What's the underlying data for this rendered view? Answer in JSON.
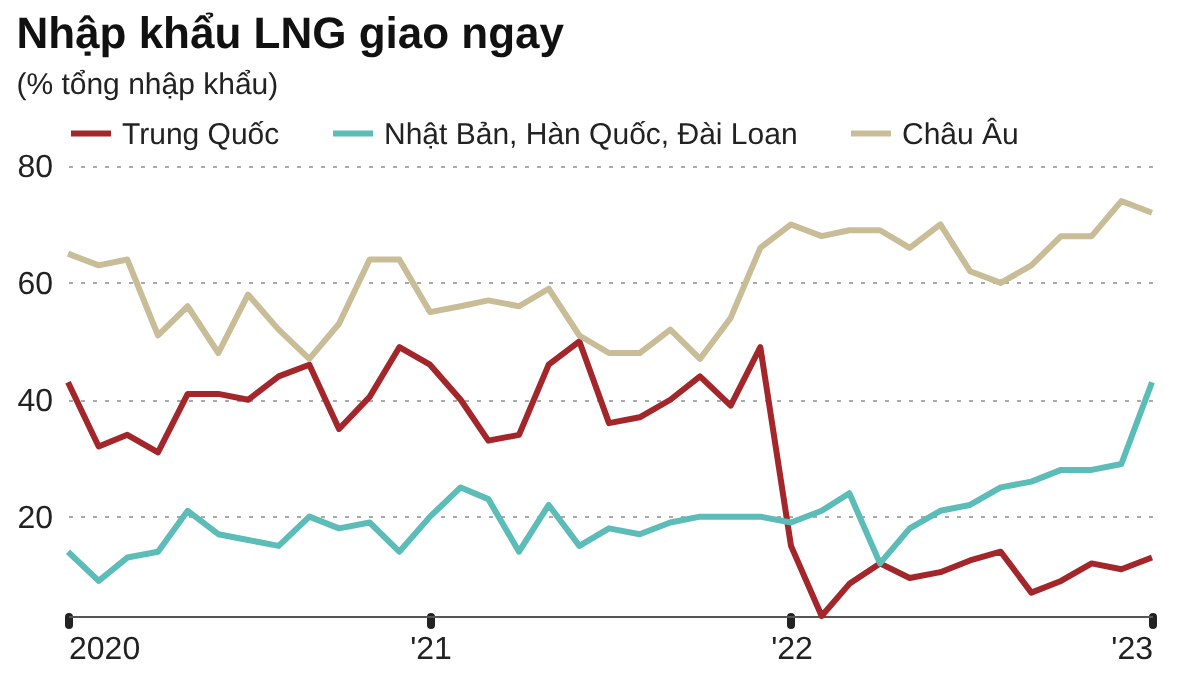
{
  "chart_data": {
    "type": "line",
    "title": "Nhập khẩu LNG giao ngay",
    "subtitle": "(% tổng nhập khẩu)",
    "x": [
      "2020-01",
      "2020-02",
      "2020-03",
      "2020-04",
      "2020-05",
      "2020-06",
      "2020-07",
      "2020-08",
      "2020-09",
      "2020-10",
      "2020-11",
      "2020-12",
      "2021-01",
      "2021-02",
      "2021-03",
      "2021-04",
      "2021-05",
      "2021-06",
      "2021-07",
      "2021-08",
      "2021-09",
      "2021-10",
      "2021-11",
      "2021-12",
      "2022-01",
      "2022-02",
      "2022-03",
      "2022-04",
      "2022-05",
      "2022-06",
      "2022-07",
      "2022-08",
      "2022-09",
      "2022-10",
      "2022-11",
      "2022-12",
      "2023-01"
    ],
    "series": [
      {
        "name": "Trung Quốc",
        "color": "#a3262a",
        "values": [
          43,
          32,
          34,
          31,
          41,
          41,
          40,
          44,
          46,
          35,
          40.5,
          49,
          46,
          40,
          33,
          34,
          46,
          50,
          36,
          37,
          40,
          44,
          39,
          49,
          15,
          3,
          8.5,
          12,
          9.5,
          10.5,
          12.5,
          14,
          7,
          9,
          12,
          11,
          13
        ]
      },
      {
        "name": "Nhật Bản, Hàn Quốc, Đài Loan",
        "color": "#5bbcb8",
        "values": [
          14,
          9,
          13,
          14,
          21,
          17,
          16,
          15,
          20,
          18,
          19,
          14,
          20,
          25,
          23,
          14,
          22,
          15,
          18,
          17,
          19,
          20,
          20,
          20,
          19,
          21,
          24,
          12,
          18,
          21,
          22,
          25,
          26,
          28,
          28,
          29,
          43
        ]
      },
      {
        "name": "Châu Âu",
        "color": "#c9bd98",
        "values": [
          65,
          63,
          64,
          51,
          56,
          48,
          58,
          52,
          47,
          53,
          64,
          64,
          55,
          56,
          57,
          56,
          59,
          51,
          48,
          48,
          52,
          47,
          54,
          66,
          70,
          68,
          69,
          69,
          66,
          70,
          62,
          60,
          63,
          68,
          68,
          74,
          72
        ]
      }
    ],
    "xlim": [
      "2020-01",
      "2023-01"
    ],
    "xticks": [
      {
        "value": "2020-01",
        "label": "2020"
      },
      {
        "value": "2021-01",
        "label": "'21"
      },
      {
        "value": "2022-01",
        "label": "'22"
      },
      {
        "value": "2023-01",
        "label": "'23"
      }
    ],
    "ylim": [
      3,
      80
    ],
    "yticks": [
      20,
      40,
      60,
      80
    ],
    "grid": "y",
    "legend": "top left",
    "line_style": "solid",
    "marker": "none"
  }
}
